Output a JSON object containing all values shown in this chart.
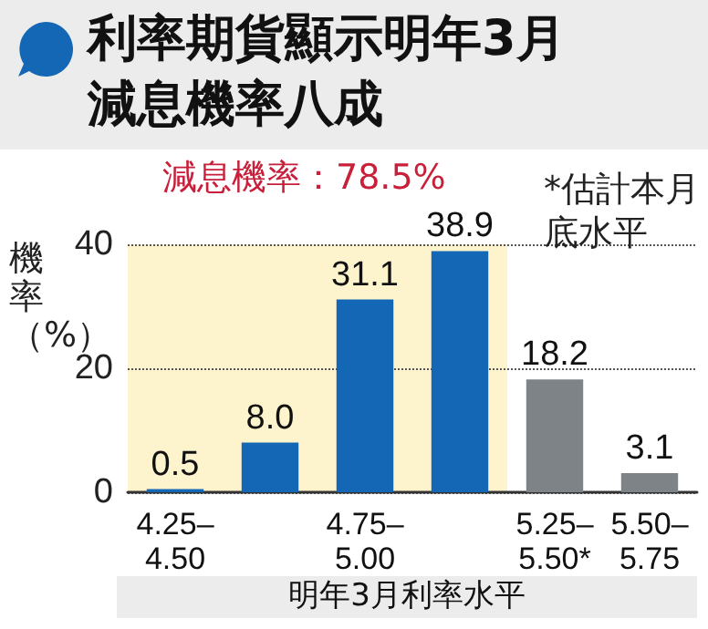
{
  "chart_data": {
    "type": "bar",
    "title": "利率期貨顯示明年3月減息機率八成",
    "xlabel": "明年3月利率水平",
    "ylabel": "機率（%）",
    "categories": [
      "4.25–4.50",
      null,
      "4.75–5.00",
      null,
      "5.25–5.50*",
      "5.50–5.75"
    ],
    "values": [
      0.5,
      8.0,
      31.1,
      38.9,
      18.2,
      3.1
    ],
    "colors": [
      "#1467b5",
      "#1467b5",
      "#1467b5",
      "#1467b5",
      "#7d8387",
      "#7d8387"
    ],
    "value_labels": [
      "0.5",
      "8.0",
      "31.1",
      "38.9",
      "18.2",
      "3.1"
    ],
    "ylim": [
      0,
      40
    ],
    "yticks": [
      0,
      20,
      40
    ],
    "grid": "y",
    "bands": [
      {
        "axis": "x",
        "from": "4.25–4.50",
        "to": "5.25–5.50*",
        "label": "減息機率：78.5%",
        "color": "#fdf3cd"
      }
    ],
    "annotations": [
      "*估計本月底水平"
    ]
  }
}
